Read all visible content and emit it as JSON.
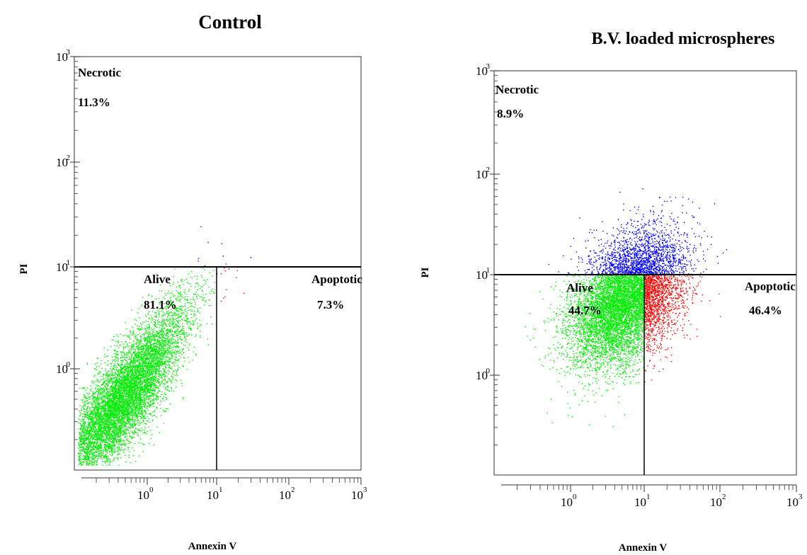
{
  "chart_data": [
    {
      "type": "scatter",
      "title": "Control",
      "xlabel": "Annexin V",
      "ylabel": "PI",
      "x_scale": "log",
      "y_scale": "log",
      "xlim": [
        0.1,
        1000
      ],
      "ylim": [
        0.1,
        1000
      ],
      "x_ticks": [
        "10",
        "10",
        "10",
        "10"
      ],
      "x_tick_exponents": [
        "0",
        "1",
        "2",
        "3"
      ],
      "y_ticks": [
        "10",
        "10",
        "10",
        "10"
      ],
      "y_tick_exponents": [
        "0",
        "1",
        "2",
        "3"
      ],
      "gates": {
        "x": 10,
        "y": 10
      },
      "quadrants": [
        {
          "label": "Necrotic",
          "value": "11.3%",
          "color": "#0000ff"
        },
        {
          "label": "Alive",
          "value": "81.1%",
          "color": "#00ee00"
        },
        {
          "label": "Apoptotic",
          "value": "7.3%",
          "color": "#ff0000"
        }
      ]
    },
    {
      "type": "scatter",
      "title": "B.V. loaded microspheres",
      "xlabel": "Annexin V",
      "ylabel": "PI",
      "x_scale": "log",
      "y_scale": "log",
      "xlim": [
        0.1,
        1000
      ],
      "ylim": [
        0.1,
        1000
      ],
      "x_ticks": [
        "10",
        "10",
        "10",
        "10"
      ],
      "x_tick_exponents": [
        "0",
        "1",
        "2",
        "3"
      ],
      "y_ticks": [
        "10",
        "10",
        "10",
        "10"
      ],
      "y_tick_exponents": [
        "0",
        "1",
        "2",
        "3"
      ],
      "gates": {
        "x": 10,
        "y": 10
      },
      "quadrants": [
        {
          "label": "Necrotic",
          "value": "8.9%",
          "color": "#0000ff"
        },
        {
          "label": "Alive",
          "value": "44.7%",
          "color": "#00ee00"
        },
        {
          "label": "Apoptotic",
          "value": "46.4%",
          "color": "#ff0000"
        }
      ]
    }
  ]
}
